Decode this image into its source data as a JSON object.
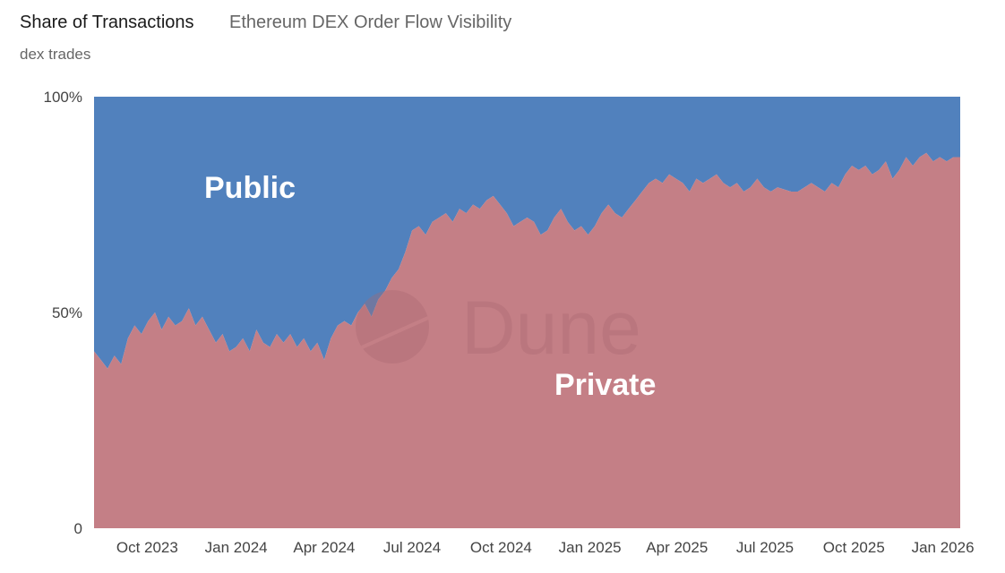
{
  "header": {
    "title": "Share of Transactions",
    "subtitle": "Ethereum DEX Order Flow Visibility",
    "description": "dex trades"
  },
  "watermark": {
    "text": "Dune",
    "icon": "dune-logo-icon"
  },
  "chart_data": {
    "type": "area",
    "stacked_percent": true,
    "title": "Share of Transactions",
    "subtitle": "Ethereum DEX Order Flow Visibility",
    "xlabel": "",
    "ylabel": "",
    "ylim": [
      0,
      100
    ],
    "xlim": [
      "2023-08-07",
      "2026-01-19"
    ],
    "grid": false,
    "legend": "none",
    "y_ticks": [
      {
        "value": 100,
        "label": "100%"
      },
      {
        "value": 50,
        "label": "50%"
      },
      {
        "value": 0,
        "label": "0"
      }
    ],
    "x_ticks": [
      {
        "value": "2023-10-01",
        "label": "Oct 2023"
      },
      {
        "value": "2024-01-01",
        "label": "Jan 2024"
      },
      {
        "value": "2024-04-01",
        "label": "Apr 2024"
      },
      {
        "value": "2024-07-01",
        "label": "Jul 2024"
      },
      {
        "value": "2024-10-01",
        "label": "Oct 2024"
      },
      {
        "value": "2025-01-01",
        "label": "Jan 2025"
      },
      {
        "value": "2025-04-01",
        "label": "Apr 2025"
      },
      {
        "value": "2025-07-01",
        "label": "Jul 2025"
      },
      {
        "value": "2025-10-01",
        "label": "Oct 2025"
      },
      {
        "value": "2026-01-01",
        "label": "Jan 2026"
      }
    ],
    "colors": {
      "Public": "#5181bd",
      "Private": "#c47f86"
    },
    "x": [
      "2023-08-07",
      "2023-08-14",
      "2023-08-21",
      "2023-08-28",
      "2023-09-04",
      "2023-09-11",
      "2023-09-18",
      "2023-09-25",
      "2023-10-02",
      "2023-10-09",
      "2023-10-16",
      "2023-10-23",
      "2023-10-30",
      "2023-11-06",
      "2023-11-13",
      "2023-11-20",
      "2023-11-27",
      "2023-12-04",
      "2023-12-11",
      "2023-12-18",
      "2023-12-25",
      "2024-01-01",
      "2024-01-08",
      "2024-01-15",
      "2024-01-22",
      "2024-01-29",
      "2024-02-05",
      "2024-02-12",
      "2024-02-19",
      "2024-02-26",
      "2024-03-04",
      "2024-03-11",
      "2024-03-18",
      "2024-03-25",
      "2024-04-01",
      "2024-04-08",
      "2024-04-15",
      "2024-04-22",
      "2024-04-29",
      "2024-05-06",
      "2024-05-13",
      "2024-05-20",
      "2024-05-27",
      "2024-06-03",
      "2024-06-10",
      "2024-06-17",
      "2024-06-24",
      "2024-07-01",
      "2024-07-08",
      "2024-07-15",
      "2024-07-22",
      "2024-07-29",
      "2024-08-05",
      "2024-08-12",
      "2024-08-19",
      "2024-08-26",
      "2024-09-02",
      "2024-09-09",
      "2024-09-16",
      "2024-09-23",
      "2024-09-30",
      "2024-10-07",
      "2024-10-14",
      "2024-10-21",
      "2024-10-28",
      "2024-11-04",
      "2024-11-11",
      "2024-11-18",
      "2024-11-25",
      "2024-12-02",
      "2024-12-09",
      "2024-12-16",
      "2024-12-23",
      "2024-12-30",
      "2025-01-06",
      "2025-01-13",
      "2025-01-20",
      "2025-01-27",
      "2025-02-03",
      "2025-02-10",
      "2025-02-17",
      "2025-02-24",
      "2025-03-03",
      "2025-03-10",
      "2025-03-17",
      "2025-03-24",
      "2025-03-31",
      "2025-04-07",
      "2025-04-14",
      "2025-04-21",
      "2025-04-28",
      "2025-05-05",
      "2025-05-12",
      "2025-05-19",
      "2025-05-26",
      "2025-06-02",
      "2025-06-09",
      "2025-06-16",
      "2025-06-23",
      "2025-06-30",
      "2025-07-07",
      "2025-07-14",
      "2025-07-21",
      "2025-07-28",
      "2025-08-04",
      "2025-08-11",
      "2025-08-18",
      "2025-08-25",
      "2025-09-01",
      "2025-09-08",
      "2025-09-15",
      "2025-09-22",
      "2025-09-29",
      "2025-10-06",
      "2025-10-13",
      "2025-10-20",
      "2025-10-27",
      "2025-11-03",
      "2025-11-10",
      "2025-11-17",
      "2025-11-24",
      "2025-12-01",
      "2025-12-08",
      "2025-12-15",
      "2025-12-22",
      "2025-12-29",
      "2026-01-05",
      "2026-01-12",
      "2026-01-19"
    ],
    "series": [
      {
        "name": "Private",
        "values": [
          41,
          39,
          37,
          40,
          38,
          44,
          47,
          45,
          48,
          50,
          46,
          49,
          47,
          48,
          51,
          47,
          49,
          46,
          43,
          45,
          41,
          42,
          44,
          41,
          46,
          43,
          42,
          45,
          43,
          45,
          42,
          44,
          41,
          43,
          39,
          44,
          47,
          48,
          47,
          50,
          52,
          49,
          53,
          55,
          58,
          60,
          64,
          69,
          70,
          68,
          71,
          72,
          73,
          71,
          74,
          73,
          75,
          74,
          76,
          77,
          75,
          73,
          70,
          71,
          72,
          71,
          68,
          69,
          72,
          74,
          71,
          69,
          70,
          68,
          70,
          73,
          75,
          73,
          72,
          74,
          76,
          78,
          80,
          81,
          80,
          82,
          81,
          80,
          78,
          81,
          80,
          81,
          82,
          80,
          79,
          80,
          78,
          79,
          81,
          79,
          78,
          79,
          78.5,
          78,
          78,
          79,
          80,
          79,
          78,
          80,
          79,
          82,
          84,
          83,
          84,
          82,
          83,
          85,
          81,
          83,
          86,
          84,
          86,
          87,
          85,
          86,
          85,
          86,
          86
        ]
      },
      {
        "name": "Public"
      }
    ]
  }
}
